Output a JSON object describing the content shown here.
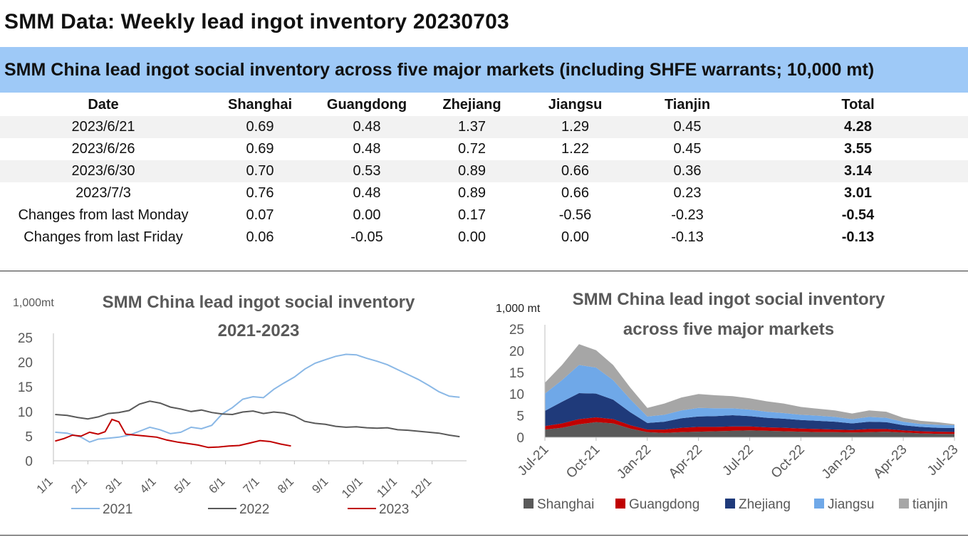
{
  "page_title": "SMM Data: Weekly lead ingot inventory 20230703",
  "table": {
    "caption": "SMM China lead ingot social inventory across five major markets (including SHFE warrants; 10,000 mt)",
    "headers": [
      "Date",
      "Shanghai",
      "Guangdong",
      "Zhejiang",
      "Jiangsu",
      "Tianjin",
      "Total"
    ],
    "rows": [
      [
        "2023/6/21",
        "0.69",
        "0.48",
        "1.37",
        "1.29",
        "0.45",
        "4.28"
      ],
      [
        "2023/6/26",
        "0.69",
        "0.48",
        "0.72",
        "1.22",
        "0.45",
        "3.55"
      ],
      [
        "2023/6/30",
        "0.70",
        "0.53",
        "0.89",
        "0.66",
        "0.36",
        "3.14"
      ],
      [
        "2023/7/3",
        "0.76",
        "0.48",
        "0.89",
        "0.66",
        "0.23",
        "3.01"
      ],
      [
        "Changes from last Monday",
        "0.07",
        "0.00",
        "0.17",
        "-0.56",
        "-0.23",
        "-0.54"
      ],
      [
        "Changes from last Friday",
        "0.06",
        "-0.05",
        "0.00",
        "0.00",
        "-0.13",
        "-0.13"
      ]
    ]
  },
  "chart_data": [
    {
      "type": "line",
      "title": "SMM China lead ingot social inventory",
      "subtitle": "2021-2023",
      "ylabel": "1,000mt",
      "ylim": [
        0,
        25
      ],
      "yticks": [
        0,
        5,
        10,
        15,
        20,
        25
      ],
      "xticks": [
        "1/1",
        "2/1",
        "3/1",
        "4/1",
        "5/1",
        "6/1",
        "7/1",
        "8/1",
        "9/1",
        "10/1",
        "11/1",
        "12/1"
      ],
      "legend_position": "bottom",
      "x_unit": "month",
      "series": [
        {
          "name": "2021",
          "color": "#8ab8e6",
          "x": [
            0.05,
            0.4,
            0.8,
            1.05,
            1.3,
            1.6,
            1.9,
            2.2,
            2.5,
            2.8,
            3.1,
            3.4,
            3.7,
            4.0,
            4.3,
            4.6,
            4.9,
            5.2,
            5.5,
            5.8,
            6.1,
            6.4,
            6.7,
            7.0,
            7.3,
            7.6,
            7.9,
            8.2,
            8.5,
            8.8,
            9.1,
            9.4,
            9.7,
            10.0,
            10.3,
            10.6,
            10.9,
            11.2,
            11.5,
            11.8
          ],
          "values": [
            5.8,
            5.6,
            4.8,
            3.8,
            4.4,
            4.6,
            4.8,
            5.2,
            6.0,
            6.8,
            6.3,
            5.5,
            5.8,
            6.8,
            6.5,
            7.2,
            9.5,
            10.8,
            12.5,
            13.0,
            12.8,
            14.5,
            15.8,
            17.0,
            18.6,
            19.8,
            20.5,
            21.2,
            21.6,
            21.5,
            20.8,
            20.2,
            19.5,
            18.5,
            17.5,
            16.5,
            15.3,
            14.0,
            13.1,
            12.9
          ]
        },
        {
          "name": "2022",
          "color": "#595959",
          "x": [
            0.05,
            0.4,
            0.7,
            1.0,
            1.3,
            1.6,
            1.9,
            2.2,
            2.5,
            2.8,
            3.1,
            3.4,
            3.7,
            4.0,
            4.3,
            4.6,
            4.9,
            5.2,
            5.5,
            5.8,
            6.1,
            6.4,
            6.7,
            7.0,
            7.3,
            7.6,
            7.9,
            8.2,
            8.5,
            8.8,
            9.1,
            9.4,
            9.7,
            10.0,
            10.3,
            10.6,
            10.9,
            11.2,
            11.5,
            11.8
          ],
          "values": [
            9.4,
            9.2,
            8.8,
            8.5,
            8.9,
            9.6,
            9.8,
            10.2,
            11.5,
            12.1,
            11.7,
            10.9,
            10.5,
            10.0,
            10.3,
            9.8,
            9.5,
            9.4,
            9.9,
            10.1,
            9.6,
            9.9,
            9.7,
            9.1,
            8.0,
            7.6,
            7.4,
            7.0,
            6.8,
            6.9,
            6.7,
            6.6,
            6.7,
            6.3,
            6.2,
            6.0,
            5.8,
            5.6,
            5.2,
            4.9
          ]
        },
        {
          "name": "2023",
          "color": "#c00000",
          "x": [
            0.05,
            0.3,
            0.55,
            0.8,
            1.05,
            1.3,
            1.5,
            1.7,
            1.9,
            2.1,
            2.4,
            2.7,
            3.0,
            3.3,
            3.6,
            3.9,
            4.2,
            4.5,
            4.8,
            5.1,
            5.4,
            5.7,
            6.0,
            6.3,
            6.6,
            6.9
          ],
          "values": [
            4.0,
            4.5,
            5.2,
            5.0,
            5.8,
            5.4,
            5.9,
            8.4,
            7.9,
            5.4,
            5.2,
            5.0,
            4.8,
            4.2,
            3.8,
            3.5,
            3.2,
            2.7,
            2.8,
            3.0,
            3.1,
            3.6,
            4.1,
            3.9,
            3.4,
            3.0
          ]
        }
      ]
    },
    {
      "type": "area",
      "stacked": true,
      "title": "SMM China lead ingot social inventory",
      "subtitle": "across five major markets",
      "ylabel": "1,000 mt",
      "ylim": [
        0,
        25
      ],
      "yticks": [
        0,
        5,
        10,
        15,
        20,
        25
      ],
      "xticks": [
        "Jul-21",
        "Oct-21",
        "Jan-22",
        "Apr-22",
        "Jul-22",
        "Oct-22",
        "Jan-23",
        "Apr-23",
        "Jul-23"
      ],
      "legend_position": "bottom",
      "x_unit": "months since Jul-21",
      "x": [
        0,
        1,
        2,
        3,
        4,
        5,
        6,
        7,
        8,
        9,
        10,
        11,
        12,
        13,
        14,
        15,
        16,
        17,
        18,
        19,
        20,
        21,
        22,
        23,
        24
      ],
      "series": [
        {
          "name": "Shanghai",
          "color": "#595959",
          "values": [
            1.8,
            2.2,
            3.0,
            3.5,
            3.2,
            2.0,
            1.2,
            1.0,
            1.2,
            1.3,
            1.4,
            1.5,
            1.6,
            1.5,
            1.4,
            1.3,
            1.2,
            1.2,
            1.1,
            1.2,
            1.3,
            1.1,
            0.9,
            0.8,
            0.76
          ]
        },
        {
          "name": "Guangdong",
          "color": "#c00000",
          "values": [
            0.8,
            1.0,
            1.2,
            1.1,
            1.0,
            0.8,
            0.6,
            0.8,
            1.0,
            1.1,
            1.0,
            1.0,
            0.9,
            0.8,
            0.8,
            0.7,
            0.7,
            0.6,
            0.6,
            0.7,
            0.6,
            0.5,
            0.5,
            0.5,
            0.48
          ]
        },
        {
          "name": "Zhejiang",
          "color": "#1f3a7a",
          "values": [
            3.5,
            5.0,
            6.0,
            5.5,
            4.5,
            3.0,
            1.5,
            1.8,
            2.2,
            2.4,
            2.5,
            2.6,
            2.4,
            2.2,
            2.1,
            2.0,
            1.9,
            1.8,
            1.5,
            1.7,
            1.6,
            1.2,
            1.0,
            0.9,
            0.89
          ]
        },
        {
          "name": "Jiangsu",
          "color": "#6fa8e8",
          "values": [
            4.0,
            5.0,
            6.5,
            6.0,
            4.5,
            3.0,
            1.5,
            1.6,
            1.8,
            2.0,
            1.8,
            1.6,
            1.5,
            1.4,
            1.3,
            1.2,
            1.2,
            1.1,
            1.0,
            1.1,
            1.0,
            0.8,
            0.7,
            0.7,
            0.66
          ]
        },
        {
          "name": "tianjin",
          "color": "#a6a6a6",
          "values": [
            2.5,
            3.5,
            4.8,
            4.0,
            3.5,
            2.7,
            2.0,
            2.6,
            3.0,
            3.2,
            3.0,
            2.8,
            2.6,
            2.4,
            2.2,
            1.8,
            1.6,
            1.5,
            1.3,
            1.5,
            1.4,
            0.9,
            0.7,
            0.6,
            0.23
          ]
        }
      ]
    }
  ]
}
